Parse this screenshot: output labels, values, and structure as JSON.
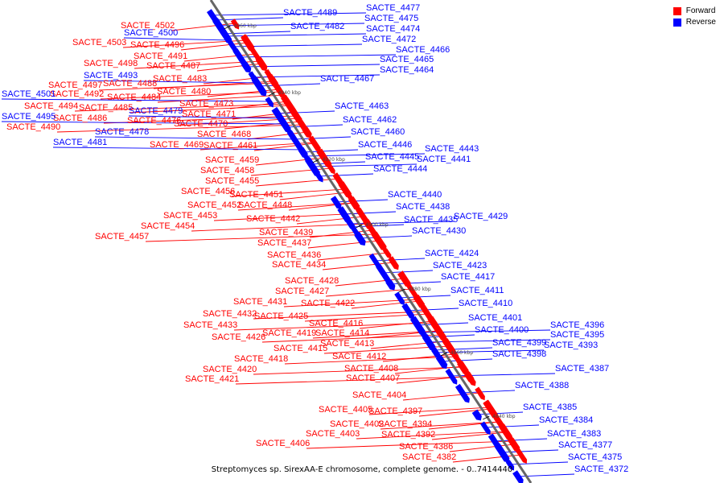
{
  "legend": [
    {
      "label": "Forward",
      "color": "#ff0000"
    },
    {
      "label": "Reverse",
      "color": "#0000ff"
    }
  ],
  "caption": "Streptomyces sp. SirexAA-E chromosome, complete genome. - 0..7414440",
  "ticks": [
    "4960 kbp",
    "4940 kbp",
    "4920 kbp",
    "4900 kbp",
    "4880 kbp",
    "4860 kbp",
    "4840 kbp"
  ],
  "forward_genes": [
    "SACTE_4502",
    "SACTE_4503",
    "SACTE_4496",
    "SACTE_4491",
    "SACTE_4498",
    "SACTE_4487",
    "SACTE_4483",
    "SACTE_4497",
    "SACTE_4488",
    "SACTE_4492",
    "SACTE_4480",
    "SACTE_4494",
    "SACTE_4484",
    "SACTE_4473",
    "SACTE_4485",
    "SACTE_4471",
    "SACTE_4490",
    "SACTE_4486",
    "SACTE_4476",
    "SACTE_4470",
    "SACTE_4468",
    "SACTE_4469",
    "SACTE_4461",
    "SACTE_4459",
    "SACTE_4458",
    "SACTE_4455",
    "SACTE_4456",
    "SACTE_4451",
    "SACTE_4452",
    "SACTE_4448",
    "SACTE_4453",
    "SACTE_4442",
    "SACTE_4454",
    "SACTE_4439",
    "SACTE_4457",
    "SACTE_4437",
    "SACTE_4436",
    "SACTE_4434",
    "SACTE_4428",
    "SACTE_4427",
    "SACTE_4431",
    "SACTE_4422",
    "SACTE_4432",
    "SACTE_4425",
    "SACTE_4416",
    "SACTE_4433",
    "SACTE_4419",
    "SACTE_4414",
    "SACTE_4426",
    "SACTE_4413",
    "SACTE_4415",
    "SACTE_4418",
    "SACTE_4412",
    "SACTE_4420",
    "SACTE_4408",
    "SACTE_4407",
    "SACTE_4421",
    "SACTE_4404",
    "SACTE_4405",
    "SACTE_4397",
    "SACTE_4402",
    "SACTE_4394",
    "SACTE_4403",
    "SACTE_4392",
    "SACTE_4406",
    "SACTE_4386",
    "SACTE_4382"
  ],
  "reverse_genes": [
    "SACTE_4489",
    "SACTE_4477",
    "SACTE_4475",
    "SACTE_4500",
    "SACTE_4482",
    "SACTE_4474",
    "SACTE_4472",
    "SACTE_4466",
    "SACTE_4465",
    "SACTE_4464",
    "SACTE_4493",
    "SACTE_4467",
    "SACTE_4501",
    "SACTE_4479",
    "SACTE_4495",
    "SACTE_4478",
    "SACTE_4481",
    "SACTE_4463",
    "SACTE_4462",
    "SACTE_4460",
    "SACTE_4446",
    "SACTE_4443",
    "SACTE_4445",
    "SACTE_4441",
    "SACTE_4444",
    "SACTE_4440",
    "SACTE_4438",
    "SACTE_4435",
    "SACTE_4429",
    "SACTE_4430",
    "SACTE_4424",
    "SACTE_4423",
    "SACTE_4417",
    "SACTE_4411",
    "SACTE_4410",
    "SACTE_4401",
    "SACTE_4396",
    "SACTE_4400",
    "SACTE_4395",
    "SACTE_4399",
    "SACTE_4393",
    "SACTE_4398",
    "SACTE_4387",
    "SACTE_4388",
    "SACTE_4385",
    "SACTE_4384",
    "SACTE_4383",
    "SACTE_4377",
    "SACTE_4375",
    "SACTE_4372"
  ]
}
